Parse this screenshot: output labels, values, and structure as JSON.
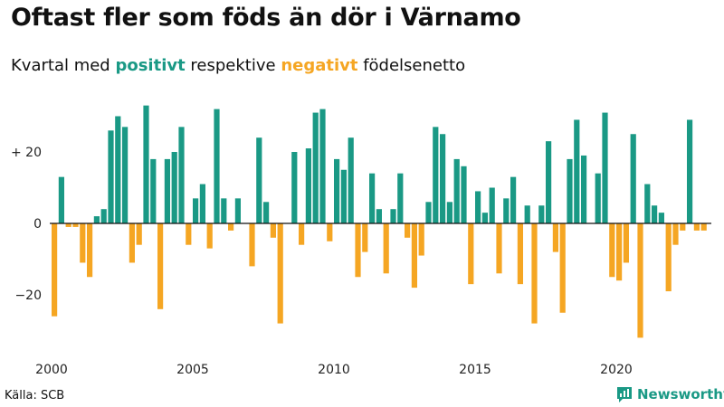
{
  "title": "Oftast fler som föds än dör i Värnamo",
  "subtitle": {
    "prefix": "Kvartal med ",
    "positive_word": "positivt",
    "middle": " respektive ",
    "negative_word": "negativt",
    "suffix": " födelsenetto"
  },
  "source": "Källa: SCB",
  "brand": "Newsworthy",
  "colors": {
    "positive": "#1a9985",
    "negative": "#f5a623"
  },
  "chart_data": {
    "type": "bar",
    "title": "Oftast fler som föds än dör i Värnamo",
    "subtitle": "Kvartal med positivt respektive negativt födelsenetto",
    "x_start": "2000Q1",
    "ylim": [
      -35,
      35
    ],
    "yticks": [
      20,
      0,
      -20
    ],
    "ytick_labels": [
      "+ 20",
      "0",
      "−20"
    ],
    "xticks": [
      2000,
      2005,
      2010,
      2015,
      2020
    ],
    "values": [
      -26,
      13,
      -1,
      -1,
      -11,
      -15,
      2,
      4,
      26,
      30,
      27,
      -11,
      -6,
      33,
      18,
      -24,
      18,
      20,
      27,
      -6,
      7,
      11,
      -7,
      32,
      7,
      -2,
      7,
      0,
      -12,
      24,
      6,
      -4,
      -28,
      0,
      20,
      -6,
      21,
      31,
      32,
      -5,
      18,
      15,
      24,
      -15,
      -8,
      14,
      4,
      -14,
      4,
      14,
      -4,
      -18,
      -9,
      6,
      27,
      25,
      6,
      18,
      16,
      -17,
      9,
      3,
      10,
      -14,
      7,
      13,
      -17,
      5,
      -28,
      5,
      23,
      -8,
      -25,
      18,
      29,
      19,
      0,
      14,
      31,
      -15,
      -16,
      -11,
      25,
      -32,
      11,
      5,
      3,
      -19,
      -6,
      -2,
      29,
      -2,
      -2
    ]
  }
}
